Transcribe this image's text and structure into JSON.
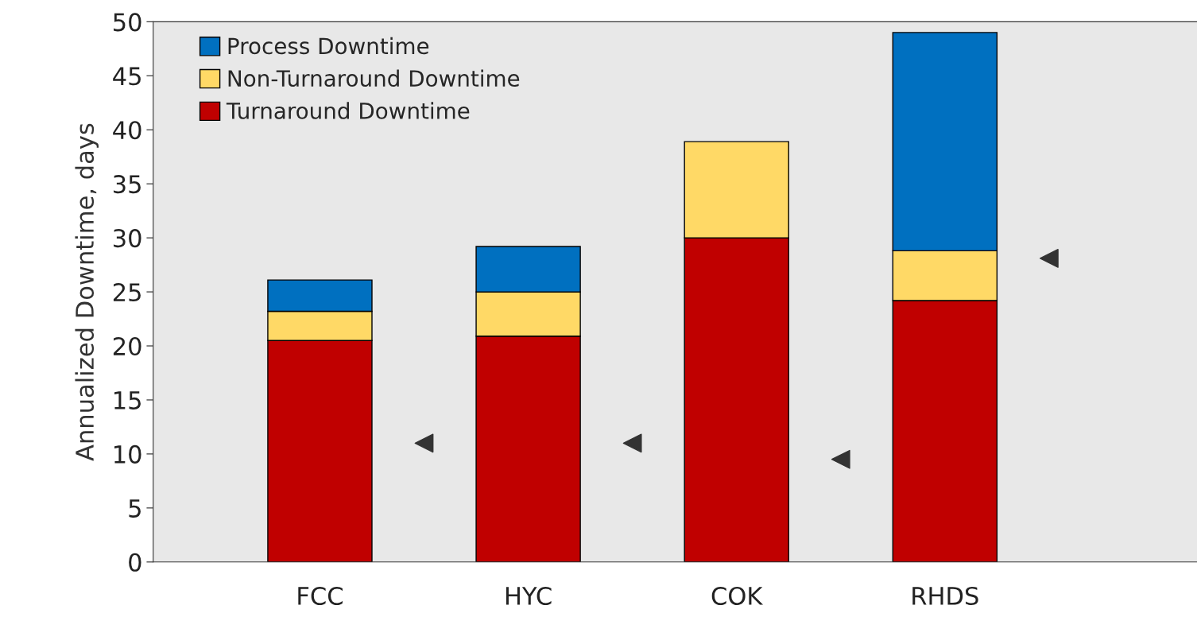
{
  "chart_data": {
    "type": "bar",
    "stacked": true,
    "ylabel": "Annualized Downtime, days",
    "categories": [
      "FCC",
      null,
      "HYC",
      null,
      "COK",
      null,
      "RHDS",
      null
    ],
    "series": [
      {
        "name": "Turnaround Downtime",
        "color": "#c00000",
        "values": [
          20.5,
          null,
          20.9,
          null,
          30.0,
          null,
          24.2,
          null
        ]
      },
      {
        "name": "Non-Turnaround Downtime",
        "color": "#ffd966",
        "values": [
          2.7,
          null,
          4.1,
          null,
          8.9,
          null,
          4.6,
          null
        ]
      },
      {
        "name": "Process Downtime",
        "color": "#0070c0",
        "values": [
          2.9,
          null,
          4.2,
          null,
          null,
          null,
          20.2,
          null
        ]
      },
      {
        "type": "scatter",
        "color": "#333333",
        "marker": "triangle",
        "values": [
          null,
          11.0,
          null,
          11.0,
          null,
          9.5,
          null,
          28.1
        ]
      }
    ],
    "ylim": [
      0,
      50
    ],
    "yticks": [
      0,
      5,
      10,
      15,
      20,
      25,
      30,
      35,
      40,
      45,
      50
    ],
    "grid": false,
    "legend": "top left"
  }
}
